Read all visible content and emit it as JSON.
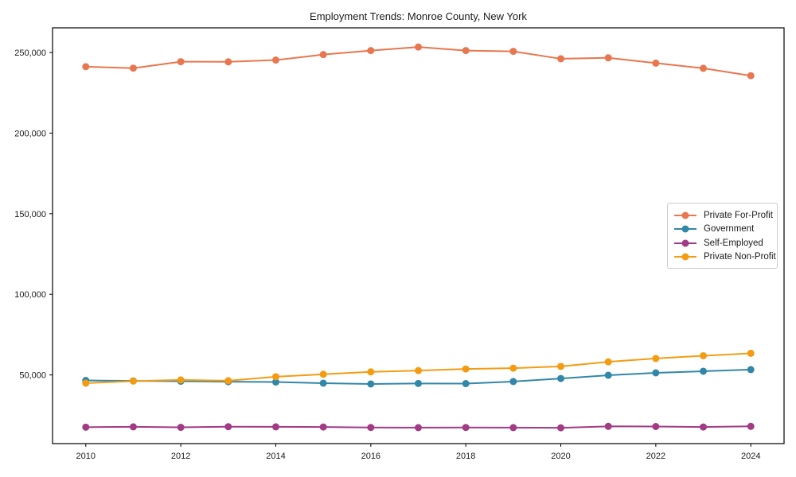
{
  "chart_data": {
    "type": "line",
    "title": "Employment Trends: Monroe County, New York",
    "xlabel": "",
    "ylabel": "",
    "grid": false,
    "legend_position": "center-right",
    "xlim": [
      2009.3,
      2024.7
    ],
    "ylim": [
      7400,
      265300
    ],
    "x": [
      2010,
      2011,
      2012,
      2013,
      2014,
      2015,
      2016,
      2017,
      2018,
      2019,
      2020,
      2021,
      2022,
      2023,
      2024
    ],
    "xtick_labels": [
      "2010",
      "2012",
      "2014",
      "2016",
      "2018",
      "2020",
      "2022",
      "2024"
    ],
    "xtick_values": [
      2010,
      2012,
      2014,
      2016,
      2018,
      2020,
      2022,
      2024
    ],
    "ytick_labels": [
      "50,000",
      "100,000",
      "150,000",
      "200,000",
      "250,000"
    ],
    "ytick_values": [
      50000,
      100000,
      150000,
      200000,
      250000
    ],
    "series": [
      {
        "name": "Private For-Profit",
        "color": "#e8764e",
        "values": [
          241200,
          240300,
          244300,
          244200,
          245300,
          248700,
          251200,
          253400,
          251200,
          250700,
          246100,
          246700,
          243400,
          240200,
          235600
        ]
      },
      {
        "name": "Government",
        "color": "#3287a8",
        "values": [
          46600,
          46300,
          46100,
          45800,
          45600,
          44900,
          44400,
          44700,
          44600,
          45900,
          47800,
          49800,
          51300,
          52300,
          53300
        ]
      },
      {
        "name": "Self-Employed",
        "color": "#a23b85",
        "values": [
          17600,
          17800,
          17500,
          17900,
          17800,
          17700,
          17400,
          17300,
          17400,
          17300,
          17200,
          18100,
          18000,
          17700,
          18100
        ]
      },
      {
        "name": "Private Non-Profit",
        "color": "#f39c12",
        "values": [
          44900,
          46200,
          46900,
          46400,
          48900,
          50400,
          51900,
          52700,
          53700,
          54200,
          55300,
          58100,
          60200,
          61900,
          63400
        ]
      }
    ]
  }
}
